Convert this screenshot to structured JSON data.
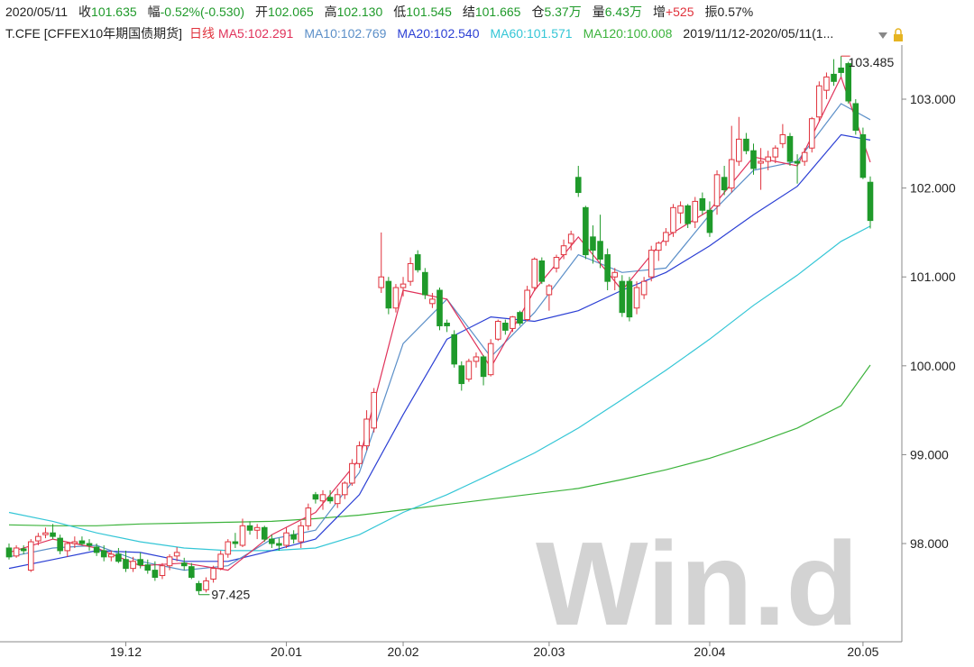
{
  "chart_data": {
    "type": "candlestick",
    "quote": [
      {
        "label": "2020/05/11"
      },
      {
        "label": "收",
        "value": "101.635",
        "color": "#1f9a2a"
      },
      {
        "label": "幅",
        "value": "-0.52%(-0.530)",
        "color": "#1f9a2a"
      },
      {
        "label": "开",
        "value": "102.065",
        "color": "#1f9a2a"
      },
      {
        "label": "高",
        "value": "102.130",
        "color": "#1f9a2a"
      },
      {
        "label": "低",
        "value": "101.545",
        "color": "#1f9a2a"
      },
      {
        "label": "结",
        "value": "101.665",
        "color": "#1f9a2a"
      },
      {
        "label": "仓",
        "value": "5.37万",
        "color": "#1f9a2a"
      },
      {
        "label": "量",
        "value": "6.43万",
        "color": "#1f9a2a"
      },
      {
        "label": "增",
        "value": "+525",
        "color": "#e0323c"
      },
      {
        "label": "振",
        "value": "0.57%",
        "color": "#222222"
      }
    ],
    "title": "T.CFE [CFFEX10年期国债期货]",
    "period": "日线",
    "range_label": "2019/11/12-2020/05/11(1...",
    "watermark": "Win.d",
    "up_color": "#e0323c",
    "down_color": "#1f9a2a",
    "grid": false,
    "ylim": [
      96.9,
      103.7
    ],
    "yticks": [
      {
        "value": 98,
        "label": "98.000"
      },
      {
        "value": 99,
        "label": "99.000"
      },
      {
        "value": 100,
        "label": "100.000"
      },
      {
        "value": 101,
        "label": "101.000"
      },
      {
        "value": 102,
        "label": "102.000"
      },
      {
        "value": 103,
        "label": "103.000"
      }
    ],
    "categories": [
      null,
      null,
      null,
      null,
      null,
      null,
      null,
      null,
      null,
      null,
      null,
      null,
      null,
      null,
      null,
      null,
      "19.12",
      null,
      null,
      null,
      null,
      null,
      null,
      null,
      null,
      null,
      null,
      null,
      null,
      null,
      null,
      null,
      null,
      null,
      null,
      null,
      null,
      null,
      "20.01",
      null,
      null,
      null,
      null,
      null,
      null,
      null,
      null,
      null,
      null,
      null,
      null,
      null,
      null,
      null,
      "20.02",
      null,
      null,
      null,
      null,
      null,
      null,
      null,
      null,
      null,
      null,
      null,
      null,
      null,
      null,
      null,
      null,
      null,
      null,
      null,
      "20.03",
      null,
      null,
      null,
      null,
      null,
      null,
      null,
      null,
      null,
      null,
      null,
      null,
      null,
      null,
      null,
      null,
      null,
      null,
      null,
      null,
      null,
      "20.04",
      null,
      null,
      null,
      null,
      null,
      null,
      null,
      null,
      null,
      null,
      null,
      null,
      null,
      null,
      null,
      null,
      null,
      null,
      null,
      null,
      "20.05",
      null
    ],
    "ohlc": [
      [
        97.95,
        98.0,
        97.82,
        97.85
      ],
      [
        97.86,
        97.98,
        97.84,
        97.95
      ],
      [
        97.94,
        97.98,
        97.88,
        97.92
      ],
      [
        97.7,
        98.05,
        97.68,
        98.02
      ],
      [
        98.03,
        98.12,
        97.98,
        98.08
      ],
      [
        98.1,
        98.18,
        98.06,
        98.12
      ],
      [
        98.12,
        98.22,
        98.05,
        98.08
      ],
      [
        98.06,
        98.1,
        97.88,
        97.92
      ],
      [
        97.92,
        98.02,
        97.85,
        98.0
      ],
      [
        98.0,
        98.08,
        97.95,
        98.02
      ],
      [
        98.03,
        98.08,
        97.98,
        98.0
      ],
      [
        98.0,
        98.05,
        97.92,
        97.98
      ],
      [
        97.96,
        98.0,
        97.86,
        97.9
      ],
      [
        97.92,
        97.98,
        97.8,
        97.85
      ],
      [
        97.85,
        97.92,
        97.8,
        97.88
      ],
      [
        97.88,
        97.95,
        97.78,
        97.8
      ],
      [
        97.82,
        97.92,
        97.68,
        97.72
      ],
      [
        97.72,
        97.85,
        97.68,
        97.8
      ],
      [
        97.82,
        97.9,
        97.72,
        97.76
      ],
      [
        97.76,
        97.82,
        97.66,
        97.7
      ],
      [
        97.7,
        97.8,
        97.58,
        97.62
      ],
      [
        97.64,
        97.78,
        97.6,
        97.75
      ],
      [
        97.75,
        97.88,
        97.7,
        97.85
      ],
      [
        97.86,
        97.96,
        97.8,
        97.9
      ],
      [
        97.78,
        97.84,
        97.7,
        97.75
      ],
      [
        97.74,
        97.78,
        97.6,
        97.62
      ],
      [
        97.55,
        97.58,
        97.425,
        97.47
      ],
      [
        97.48,
        97.62,
        97.45,
        97.58
      ],
      [
        97.6,
        97.75,
        97.56,
        97.72
      ],
      [
        97.72,
        97.92,
        97.7,
        97.88
      ],
      [
        97.88,
        98.05,
        97.84,
        98.02
      ],
      [
        98.02,
        98.12,
        97.95,
        98.0
      ],
      [
        97.98,
        98.28,
        97.96,
        98.2
      ],
      [
        98.2,
        98.25,
        98.1,
        98.15
      ],
      [
        98.15,
        98.22,
        98.05,
        98.18
      ],
      [
        98.18,
        98.2,
        98.02,
        98.05
      ],
      [
        98.05,
        98.1,
        97.95,
        98.0
      ],
      [
        98.0,
        98.06,
        97.92,
        97.98
      ],
      [
        97.98,
        98.18,
        97.95,
        98.12
      ],
      [
        98.1,
        98.15,
        98.0,
        98.05
      ],
      [
        98.02,
        98.25,
        97.95,
        98.2
      ],
      [
        98.2,
        98.45,
        98.15,
        98.4
      ],
      [
        98.55,
        98.58,
        98.45,
        98.5
      ],
      [
        98.48,
        98.6,
        98.38,
        98.55
      ],
      [
        98.52,
        98.6,
        98.45,
        98.48
      ],
      [
        98.45,
        98.62,
        98.4,
        98.55
      ],
      [
        98.55,
        98.7,
        98.5,
        98.68
      ],
      [
        98.68,
        98.95,
        98.65,
        98.9
      ],
      [
        98.9,
        99.15,
        98.85,
        99.1
      ],
      [
        99.1,
        99.5,
        99.05,
        99.4
      ],
      [
        99.3,
        99.75,
        99.25,
        99.7
      ],
      [
        100.88,
        101.5,
        100.82,
        101.0
      ],
      [
        100.95,
        101.0,
        100.58,
        100.65
      ],
      [
        100.65,
        100.92,
        100.6,
        100.88
      ],
      [
        100.88,
        101.0,
        100.78,
        100.92
      ],
      [
        100.95,
        101.22,
        100.9,
        101.15
      ],
      [
        101.25,
        101.3,
        101.05,
        101.08
      ],
      [
        101.05,
        101.1,
        100.75,
        100.8
      ],
      [
        100.7,
        100.82,
        100.65,
        100.75
      ],
      [
        100.85,
        100.88,
        100.4,
        100.45
      ],
      [
        100.48,
        100.52,
        100.38,
        100.45
      ],
      [
        100.35,
        100.4,
        99.98,
        100.02
      ],
      [
        100.0,
        100.05,
        99.72,
        99.8
      ],
      [
        99.85,
        100.08,
        99.82,
        100.05
      ],
      [
        100.05,
        100.15,
        99.98,
        100.1
      ],
      [
        100.1,
        100.12,
        99.78,
        99.88
      ],
      [
        99.9,
        100.3,
        99.88,
        100.25
      ],
      [
        100.3,
        100.52,
        100.28,
        100.5
      ],
      [
        100.48,
        100.52,
        100.35,
        100.4
      ],
      [
        100.42,
        100.56,
        100.38,
        100.55
      ],
      [
        100.6,
        100.62,
        100.45,
        100.48
      ],
      [
        100.52,
        100.9,
        100.5,
        100.85
      ],
      [
        100.88,
        101.22,
        100.84,
        101.2
      ],
      [
        101.18,
        101.22,
        100.92,
        100.95
      ],
      [
        100.8,
        100.92,
        100.62,
        100.9
      ],
      [
        101.1,
        101.25,
        101.05,
        101.22
      ],
      [
        101.25,
        101.42,
        101.2,
        101.35
      ],
      [
        101.38,
        101.52,
        101.3,
        101.48
      ],
      [
        102.12,
        102.25,
        101.9,
        101.95
      ],
      [
        101.78,
        101.8,
        101.2,
        101.25
      ],
      [
        101.45,
        101.58,
        101.15,
        101.3
      ],
      [
        101.4,
        101.7,
        101.1,
        101.2
      ],
      [
        101.25,
        101.32,
        100.85,
        100.95
      ],
      [
        101.0,
        101.1,
        100.85,
        101.05
      ],
      [
        100.95,
        101.02,
        100.55,
        100.6
      ],
      [
        100.95,
        101.0,
        100.5,
        100.55
      ],
      [
        100.65,
        100.95,
        100.58,
        100.88
      ],
      [
        100.8,
        101.0,
        100.75,
        100.95
      ],
      [
        101.0,
        101.35,
        100.95,
        101.3
      ],
      [
        101.3,
        101.4,
        101.18,
        101.38
      ],
      [
        101.4,
        101.55,
        101.35,
        101.5
      ],
      [
        101.5,
        101.82,
        101.45,
        101.78
      ],
      [
        101.72,
        101.85,
        101.6,
        101.8
      ],
      [
        101.8,
        101.82,
        101.55,
        101.6
      ],
      [
        101.62,
        101.9,
        101.55,
        101.85
      ],
      [
        101.88,
        101.95,
        101.7,
        101.75
      ],
      [
        101.75,
        101.85,
        101.45,
        101.5
      ],
      [
        101.8,
        102.2,
        101.7,
        102.15
      ],
      [
        102.12,
        102.25,
        101.92,
        101.98
      ],
      [
        102.0,
        102.7,
        101.95,
        102.32
      ],
      [
        102.3,
        102.8,
        102.25,
        102.55
      ],
      [
        102.55,
        102.62,
        102.38,
        102.42
      ],
      [
        102.42,
        102.5,
        102.15,
        102.22
      ],
      [
        102.28,
        102.45,
        101.98,
        102.3
      ],
      [
        102.3,
        102.42,
        102.2,
        102.35
      ],
      [
        102.35,
        102.48,
        102.28,
        102.45
      ],
      [
        102.5,
        102.72,
        102.45,
        102.6
      ],
      [
        102.58,
        102.62,
        102.25,
        102.3
      ],
      [
        102.3,
        102.38,
        102.05,
        102.28
      ],
      [
        102.3,
        102.45,
        102.25,
        102.4
      ],
      [
        102.45,
        102.8,
        102.4,
        102.78
      ],
      [
        102.8,
        103.2,
        102.75,
        103.15
      ],
      [
        103.1,
        103.3,
        103.0,
        103.25
      ],
      [
        103.28,
        103.45,
        103.15,
        103.2
      ],
      [
        103.35,
        103.485,
        103.25,
        103.3
      ],
      [
        103.4,
        103.42,
        102.95,
        102.98
      ],
      [
        102.95,
        103.0,
        102.6,
        102.65
      ],
      [
        102.6,
        102.68,
        102.1,
        102.12
      ],
      [
        102.065,
        102.13,
        101.545,
        101.635
      ]
    ],
    "series": [
      {
        "name": "MA5:102.291",
        "color": "#e0325a",
        "x": [
          0,
          6,
          12,
          18,
          24,
          30,
          36,
          42,
          48,
          54,
          60,
          66,
          72,
          78,
          84,
          90,
          96,
          102,
          108,
          114,
          118
        ],
        "values": [
          97.9,
          98.05,
          97.95,
          97.75,
          97.78,
          97.7,
          98.1,
          98.35,
          98.95,
          100.85,
          100.75,
          99.98,
          100.85,
          101.45,
          100.85,
          101.45,
          101.75,
          102.35,
          102.25,
          103.25,
          102.291
        ]
      },
      {
        "name": "MA10:102.769",
        "color": "#5b8fc8",
        "x": [
          0,
          6,
          12,
          18,
          24,
          30,
          36,
          42,
          48,
          54,
          60,
          66,
          72,
          78,
          84,
          90,
          96,
          102,
          108,
          114,
          118
        ],
        "values": [
          97.85,
          97.95,
          97.98,
          97.8,
          97.7,
          97.75,
          98.05,
          98.15,
          98.8,
          100.25,
          100.75,
          100.1,
          100.6,
          101.25,
          101.05,
          101.1,
          101.7,
          102.2,
          102.3,
          102.95,
          102.769
        ]
      },
      {
        "name": "MA20:102.540",
        "color": "#2b3fd4",
        "x": [
          0,
          6,
          12,
          18,
          24,
          30,
          36,
          42,
          48,
          54,
          60,
          66,
          72,
          78,
          84,
          90,
          96,
          102,
          108,
          114,
          118
        ],
        "values": [
          97.72,
          97.82,
          97.92,
          97.9,
          97.8,
          97.8,
          97.92,
          98.05,
          98.55,
          99.45,
          100.3,
          100.55,
          100.5,
          100.62,
          100.85,
          101.05,
          101.35,
          101.7,
          102.02,
          102.6,
          102.54
        ]
      },
      {
        "name": "MA60:101.571",
        "color": "#34c6d6",
        "x": [
          0,
          6,
          12,
          18,
          24,
          30,
          36,
          42,
          48,
          54,
          60,
          66,
          72,
          78,
          84,
          90,
          96,
          102,
          108,
          114,
          118
        ],
        "values": [
          98.35,
          98.25,
          98.12,
          98.02,
          97.95,
          97.92,
          97.92,
          97.95,
          98.1,
          98.35,
          98.55,
          98.78,
          99.02,
          99.3,
          99.62,
          99.95,
          100.3,
          100.68,
          101.02,
          101.4,
          101.571
        ]
      },
      {
        "name": "MA120:100.008",
        "color": "#3cb33c",
        "x": [
          0,
          6,
          12,
          18,
          24,
          30,
          36,
          42,
          48,
          54,
          60,
          66,
          72,
          78,
          84,
          90,
          96,
          102,
          108,
          114,
          118
        ],
        "values": [
          98.21,
          98.2,
          98.2,
          98.22,
          98.23,
          98.24,
          98.25,
          98.28,
          98.32,
          98.38,
          98.44,
          98.5,
          98.56,
          98.62,
          98.72,
          98.83,
          98.96,
          99.12,
          99.3,
          99.55,
          100.008
        ]
      }
    ]
  }
}
